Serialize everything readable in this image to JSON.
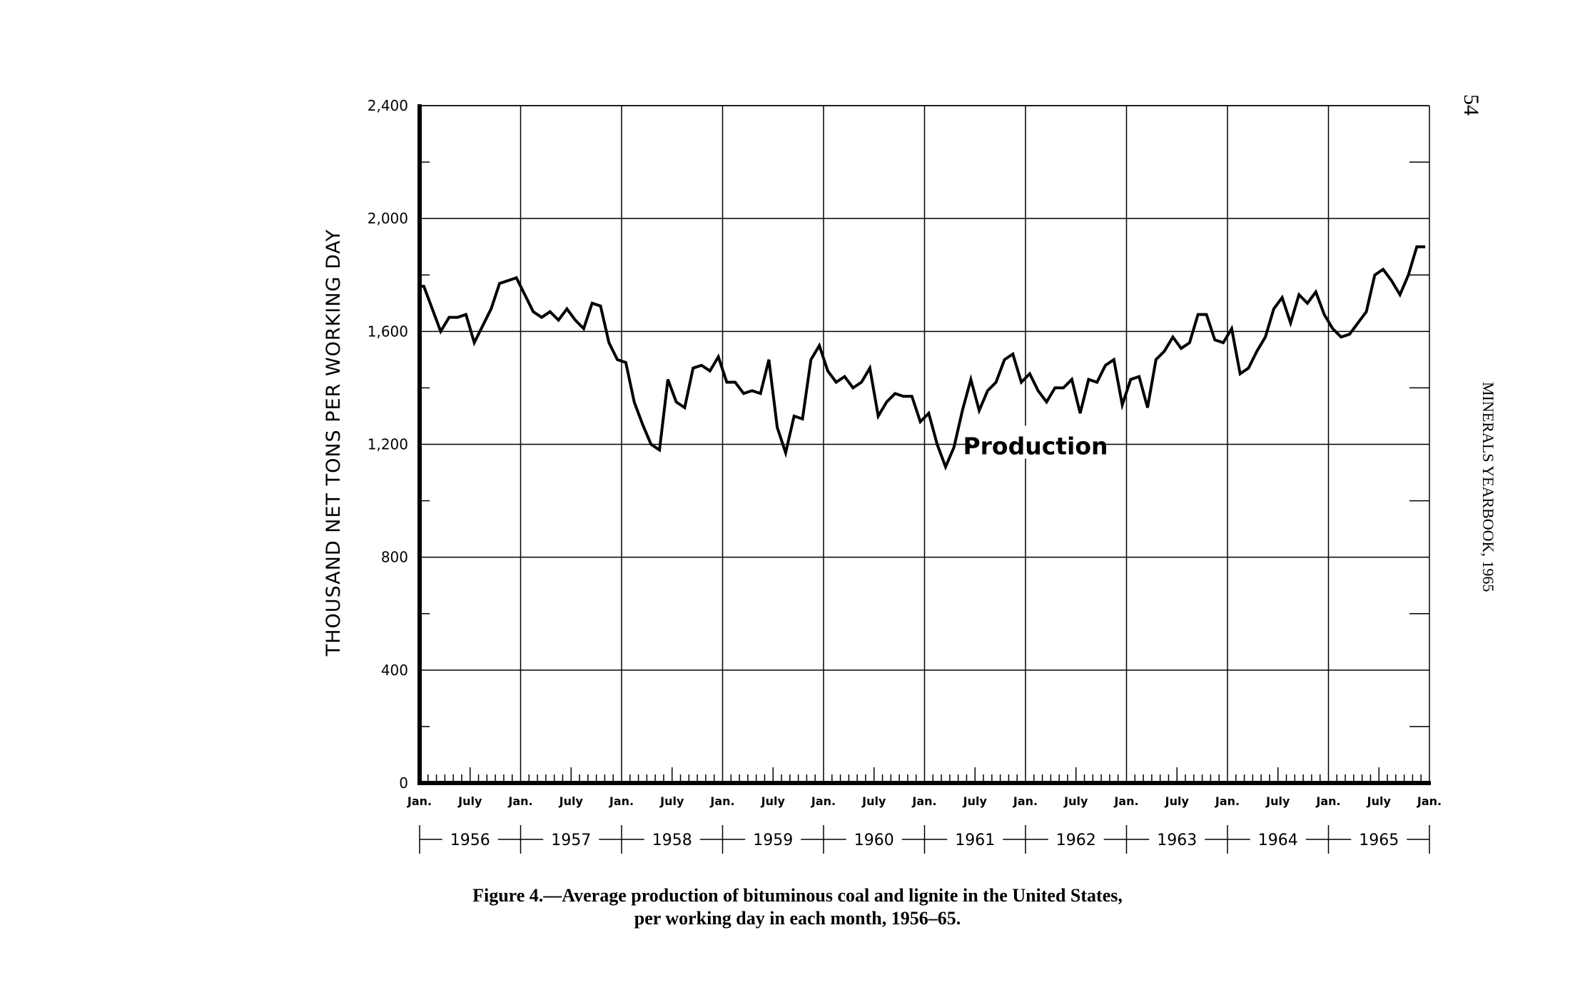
{
  "page": {
    "page_number": "54",
    "publication": "MINERALS YEARBOOK, 1965",
    "caption_line1": "Figure 4.—Average production of bituminous coal and lignite in the United States,",
    "caption_line2": "per working day in each month, 1956–65."
  },
  "chart_data": {
    "type": "line",
    "title": "",
    "xlabel": "",
    "ylabel": "THOUSAND NET TONS PER WORKING DAY",
    "ylim": [
      0,
      2400
    ],
    "yticks": [
      0,
      400,
      800,
      1200,
      1600,
      2000,
      2400
    ],
    "ytick_labels": [
      "0",
      "400",
      "800",
      "1,200",
      "1,600",
      "2,000",
      "2,400"
    ],
    "x_start": "1956-01",
    "x_end": "1966-01",
    "month_tick_labels": [
      "Jan.",
      "July",
      "Jan.",
      "July",
      "Jan.",
      "July",
      "Jan.",
      "July",
      "Jan.",
      "July",
      "Jan.",
      "July",
      "Jan.",
      "July",
      "Jan.",
      "July",
      "Jan.",
      "July",
      "Jan.",
      "July",
      "Jan."
    ],
    "year_labels": [
      "1956",
      "1957",
      "1958",
      "1959",
      "1960",
      "1961",
      "1962",
      "1963",
      "1964",
      "1965"
    ],
    "grid": true,
    "series": [
      {
        "name": "Production",
        "color": "#000000",
        "values": [
          1760,
          1680,
          1600,
          1650,
          1650,
          1660,
          1560,
          1620,
          1680,
          1770,
          1780,
          1790,
          1730,
          1670,
          1650,
          1670,
          1640,
          1680,
          1640,
          1610,
          1700,
          1690,
          1560,
          1500,
          1490,
          1350,
          1270,
          1200,
          1180,
          1430,
          1350,
          1330,
          1470,
          1480,
          1460,
          1510,
          1420,
          1420,
          1380,
          1390,
          1380,
          1500,
          1260,
          1170,
          1300,
          1290,
          1500,
          1550,
          1460,
          1420,
          1440,
          1400,
          1420,
          1470,
          1300,
          1350,
          1380,
          1370,
          1370,
          1280,
          1310,
          1200,
          1120,
          1190,
          1320,
          1430,
          1320,
          1390,
          1420,
          1500,
          1520,
          1420,
          1450,
          1390,
          1350,
          1400,
          1400,
          1430,
          1310,
          1430,
          1420,
          1480,
          1500,
          1340,
          1430,
          1440,
          1330,
          1500,
          1530,
          1580,
          1540,
          1560,
          1660,
          1660,
          1570,
          1560,
          1610,
          1450,
          1470,
          1530,
          1580,
          1680,
          1720,
          1630,
          1730,
          1700,
          1740,
          1660,
          1610,
          1580,
          1590,
          1630,
          1670,
          1800,
          1820,
          1780,
          1730,
          1800,
          1900,
          1900
        ]
      }
    ]
  }
}
